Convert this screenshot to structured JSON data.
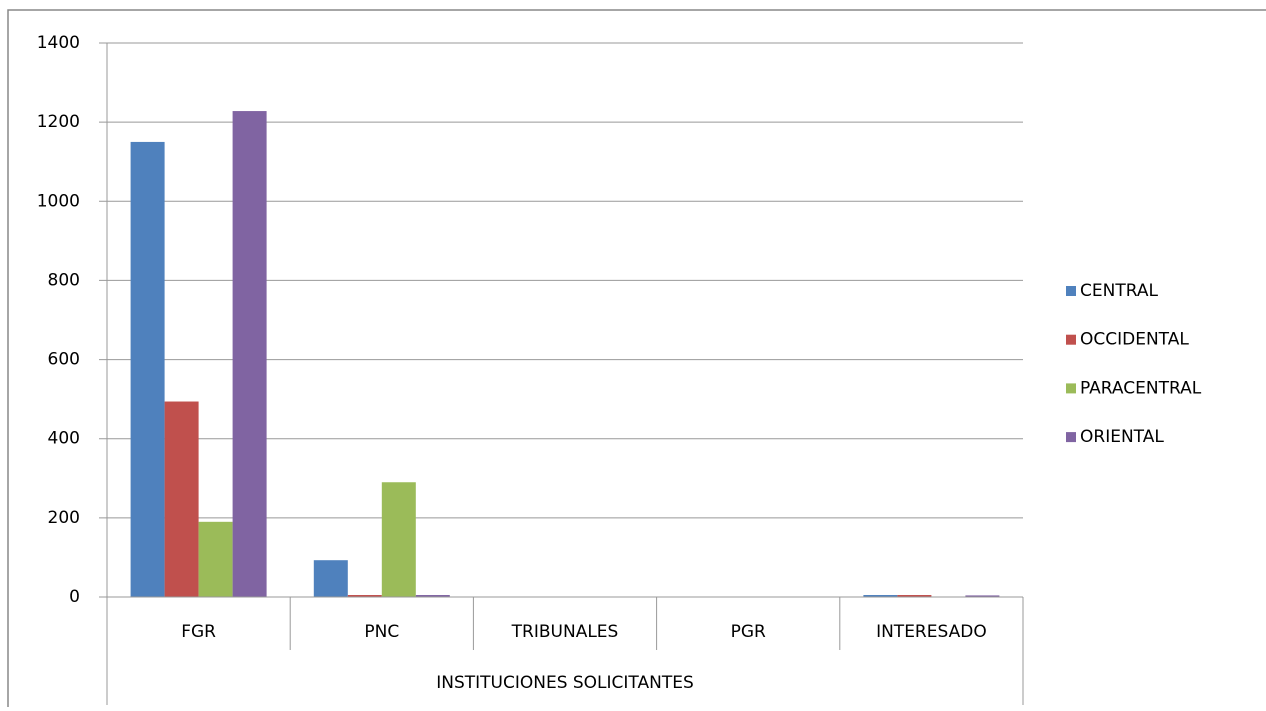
{
  "chart_data": {
    "type": "bar",
    "categories": [
      "FGR",
      "PNC",
      "TRIBUNALES",
      "PGR",
      "INTERESADO"
    ],
    "xlabel": "INSTITUCIONES SOLICITANTES",
    "series": [
      {
        "name": "CENTRAL",
        "color": "#4f81bd",
        "values": [
          1150,
          93,
          0,
          0,
          5
        ]
      },
      {
        "name": "OCCIDENTAL",
        "color": "#c0504d",
        "values": [
          494,
          5,
          0,
          0,
          5
        ]
      },
      {
        "name": "PARACENTRAL",
        "color": "#9bbb59",
        "values": [
          190,
          290,
          0,
          0,
          0
        ]
      },
      {
        "name": "ORIENTAL",
        "color": "#8064a2",
        "values": [
          1228,
          5,
          0,
          0,
          4
        ]
      }
    ],
    "ylim": [
      0,
      1400
    ],
    "yticks": [
      0,
      200,
      400,
      600,
      800,
      1000,
      1200,
      1400
    ],
    "grid": true,
    "legend": "right"
  }
}
